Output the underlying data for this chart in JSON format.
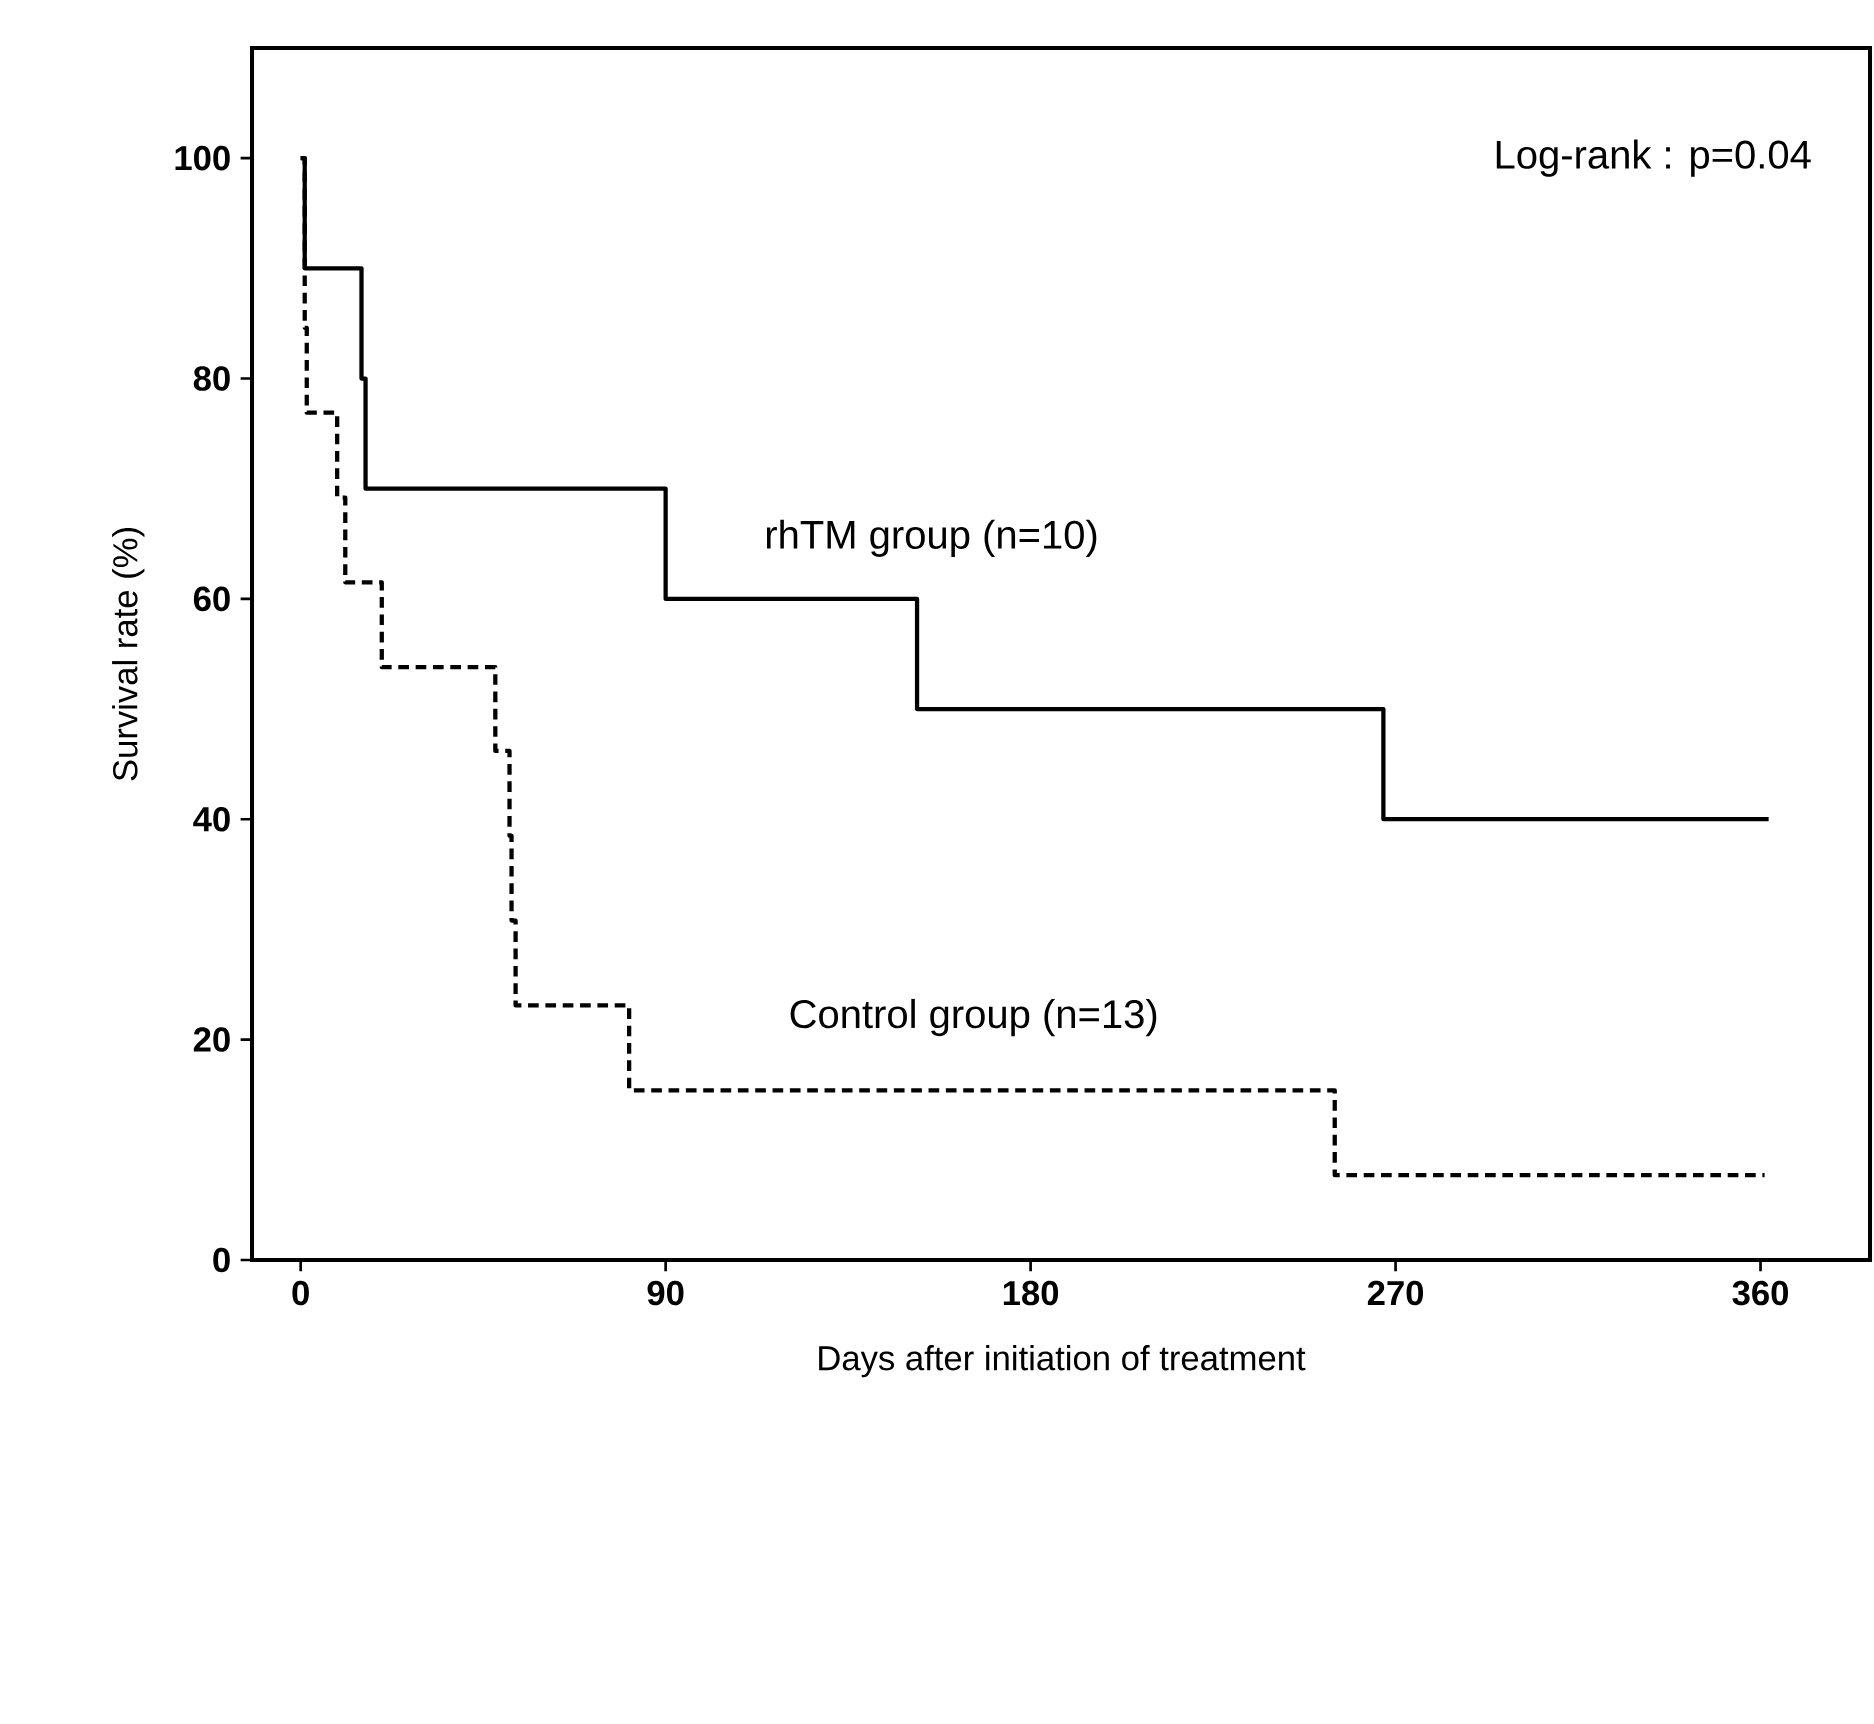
{
  "chart_data": {
    "type": "step",
    "xlabel": "Days after initiation of treatment",
    "ylabel": "Survival rate (%)",
    "annotations": [
      "Log-rank :  p=0.04"
    ],
    "series": [
      {
        "name": "rhTM group (n=10)",
        "color": "#000000",
        "line_style": "solid",
        "x": [
          0,
          1,
          15,
          16,
          90,
          152,
          267,
          362
        ],
        "values": [
          100,
          90,
          80,
          70,
          60,
          50,
          40,
          40
        ]
      },
      {
        "name": "Control group  (n=13)",
        "color": "#000000",
        "line_style": "dashed",
        "x": [
          0,
          1,
          1.5,
          9,
          11,
          20,
          48,
          51.5,
          52,
          53,
          81,
          255,
          361
        ],
        "values": [
          100,
          84.6,
          76.9,
          69.2,
          61.5,
          53.8,
          46.2,
          38.5,
          30.8,
          23.1,
          15.4,
          7.7,
          7.7
        ]
      }
    ],
    "xlim": [
      -12,
      387
    ],
    "ylim": [
      0,
      110
    ],
    "xticks": [
      0,
      90,
      180,
      270,
      360
    ],
    "yticks": [
      0,
      20,
      40,
      60,
      80,
      100
    ],
    "legend": false,
    "marker": "none",
    "grid": false
  }
}
